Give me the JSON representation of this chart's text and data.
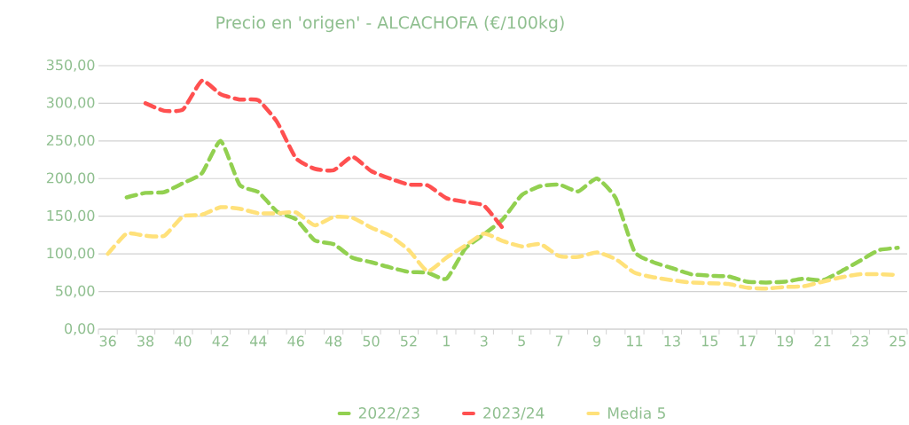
{
  "chart_data": {
    "type": "line",
    "title": "Precio en 'origen' - ALCACHOFA (€/100kg)",
    "categories": [
      "36",
      null,
      "38",
      null,
      "40",
      null,
      "42",
      null,
      "44",
      null,
      "46",
      null,
      "48",
      null,
      "50",
      null,
      "52",
      null,
      "1",
      null,
      "3",
      null,
      "5",
      null,
      "7",
      null,
      "9",
      null,
      "11",
      null,
      "13",
      null,
      "15",
      null,
      "17",
      null,
      "19",
      null,
      "21",
      null,
      "23",
      null,
      "25"
    ],
    "series": [
      {
        "name": "2022/23",
        "color": "#92d050",
        "values": [
          null,
          175,
          181,
          182,
          194,
          207,
          250,
          192,
          182,
          156,
          146,
          118,
          113,
          95,
          89,
          82,
          76,
          75,
          67,
          107,
          126,
          146,
          178,
          190,
          192,
          183,
          200,
          174,
          103,
          89,
          81,
          73,
          71,
          70,
          63,
          62,
          63,
          67,
          65,
          77,
          91,
          105,
          108
        ]
      },
      {
        "name": "2023/24",
        "color": "#ff5050",
        "values": [
          null,
          null,
          300,
          290,
          292,
          330,
          312,
          305,
          304,
          275,
          227,
          213,
          211,
          229,
          210,
          200,
          192,
          191,
          174,
          169,
          164,
          134,
          null,
          null,
          null,
          null,
          null,
          null,
          null,
          null,
          null,
          null,
          null,
          null,
          null,
          null,
          null,
          null,
          null,
          null,
          null,
          null,
          null
        ]
      },
      {
        "name": "Media 5",
        "color": "#ffe17a",
        "values": [
          100,
          127,
          124,
          124,
          150,
          152,
          162,
          160,
          154,
          154,
          155,
          138,
          149,
          148,
          135,
          124,
          105,
          77,
          95,
          111,
          127,
          117,
          110,
          113,
          97,
          96,
          102,
          93,
          75,
          69,
          65,
          62,
          61,
          60,
          55,
          54,
          56,
          57,
          63,
          69,
          73,
          73,
          72
        ]
      }
    ],
    "ylim": [
      0,
      350
    ],
    "yticks": [
      {
        "value": 0,
        "label": "0,00"
      },
      {
        "value": 50,
        "label": "50,00"
      },
      {
        "value": 100,
        "label": "100,00"
      },
      {
        "value": 150,
        "label": "150,00"
      },
      {
        "value": 200,
        "label": "200,00"
      },
      {
        "value": 250,
        "label": "250,00"
      },
      {
        "value": 300,
        "label": "300,00"
      },
      {
        "value": 350,
        "label": "350,00"
      }
    ],
    "grid": "y",
    "legend": "bottom",
    "line_style": "dashed",
    "marker": "none"
  }
}
